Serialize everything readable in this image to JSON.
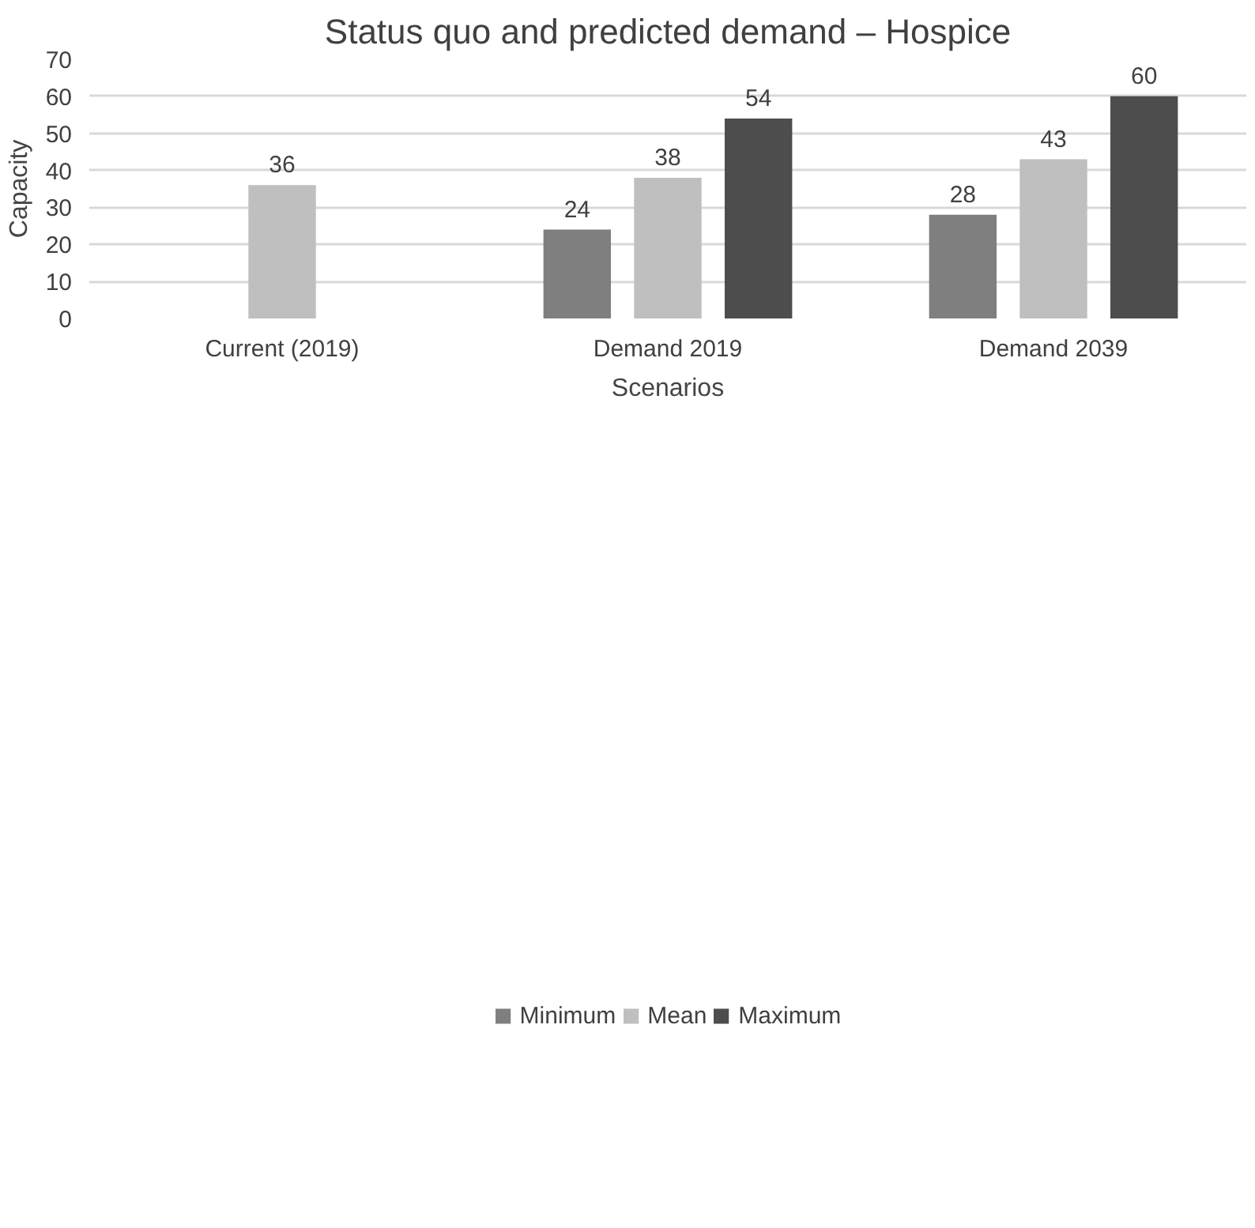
{
  "chart_data": {
    "type": "bar",
    "title": "Status quo and predicted demand – Hospice",
    "xlabel": "Scenarios",
    "ylabel": "Capacity",
    "categories": [
      "Current (2019)",
      "Demand 2019",
      "Demand 2039"
    ],
    "series": [
      {
        "name": "Minimum",
        "color": "#7f7f7f",
        "values": [
          null,
          24,
          28
        ]
      },
      {
        "name": "Mean",
        "color": "#bfbfbf",
        "values": [
          36,
          38,
          43
        ]
      },
      {
        "name": "Maximum",
        "color": "#4d4d4d",
        "values": [
          null,
          54,
          60
        ]
      }
    ],
    "ylim": [
      0,
      70
    ],
    "yticks": [
      0,
      10,
      20,
      30,
      40,
      50,
      60,
      70
    ],
    "grid": "y",
    "legend": "bottom",
    "data_labels": true
  }
}
